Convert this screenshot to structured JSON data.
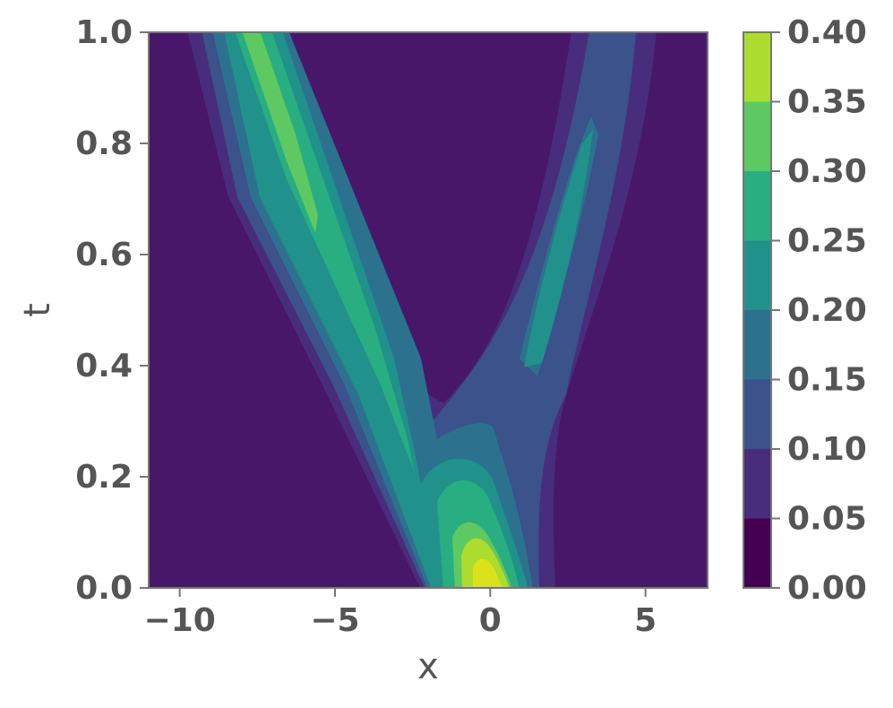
{
  "chart_data": {
    "type": "heatmap",
    "subtype": "filled-contour",
    "title": "",
    "xlabel": "x",
    "ylabel": "t",
    "xlim": [
      -11,
      7
    ],
    "ylim": [
      0,
      1
    ],
    "xticks": [
      -10,
      -5,
      0,
      5
    ],
    "xtick_labels": [
      "−10",
      "−5",
      "0",
      "5"
    ],
    "yticks": [
      0.0,
      0.2,
      0.4,
      0.6,
      0.8,
      1.0
    ],
    "ytick_labels": [
      "0.0",
      "0.2",
      "0.4",
      "0.6",
      "0.8",
      "1.0"
    ],
    "colormap": "viridis",
    "colorbar": {
      "levels": [
        0.0,
        0.05,
        0.1,
        0.15,
        0.2,
        0.25,
        0.3,
        0.35,
        0.4
      ],
      "tick_labels": [
        "0.00",
        "0.05",
        "0.10",
        "0.15",
        "0.20",
        "0.25",
        "0.30",
        "0.35",
        "0.40"
      ],
      "colors": [
        "#440154",
        "#472d7b",
        "#3b528b",
        "#2c728e",
        "#21918c",
        "#28ae80",
        "#5ec962",
        "#addc30",
        "#fde725"
      ],
      "placement": "right"
    },
    "background_color": "#481769",
    "features": [
      {
        "name": "left-ridge",
        "start": [
          -2,
          0.0
        ],
        "end": [
          -8,
          1.0
        ],
        "peak": 0.27
      },
      {
        "name": "right-ridge",
        "start": [
          1.5,
          0.3
        ],
        "end": [
          3.5,
          1.0
        ],
        "peak": 0.17
      },
      {
        "name": "initial-peak",
        "center": [
          0,
          0.0
        ],
        "peak": 0.4
      }
    ],
    "grid": false
  }
}
